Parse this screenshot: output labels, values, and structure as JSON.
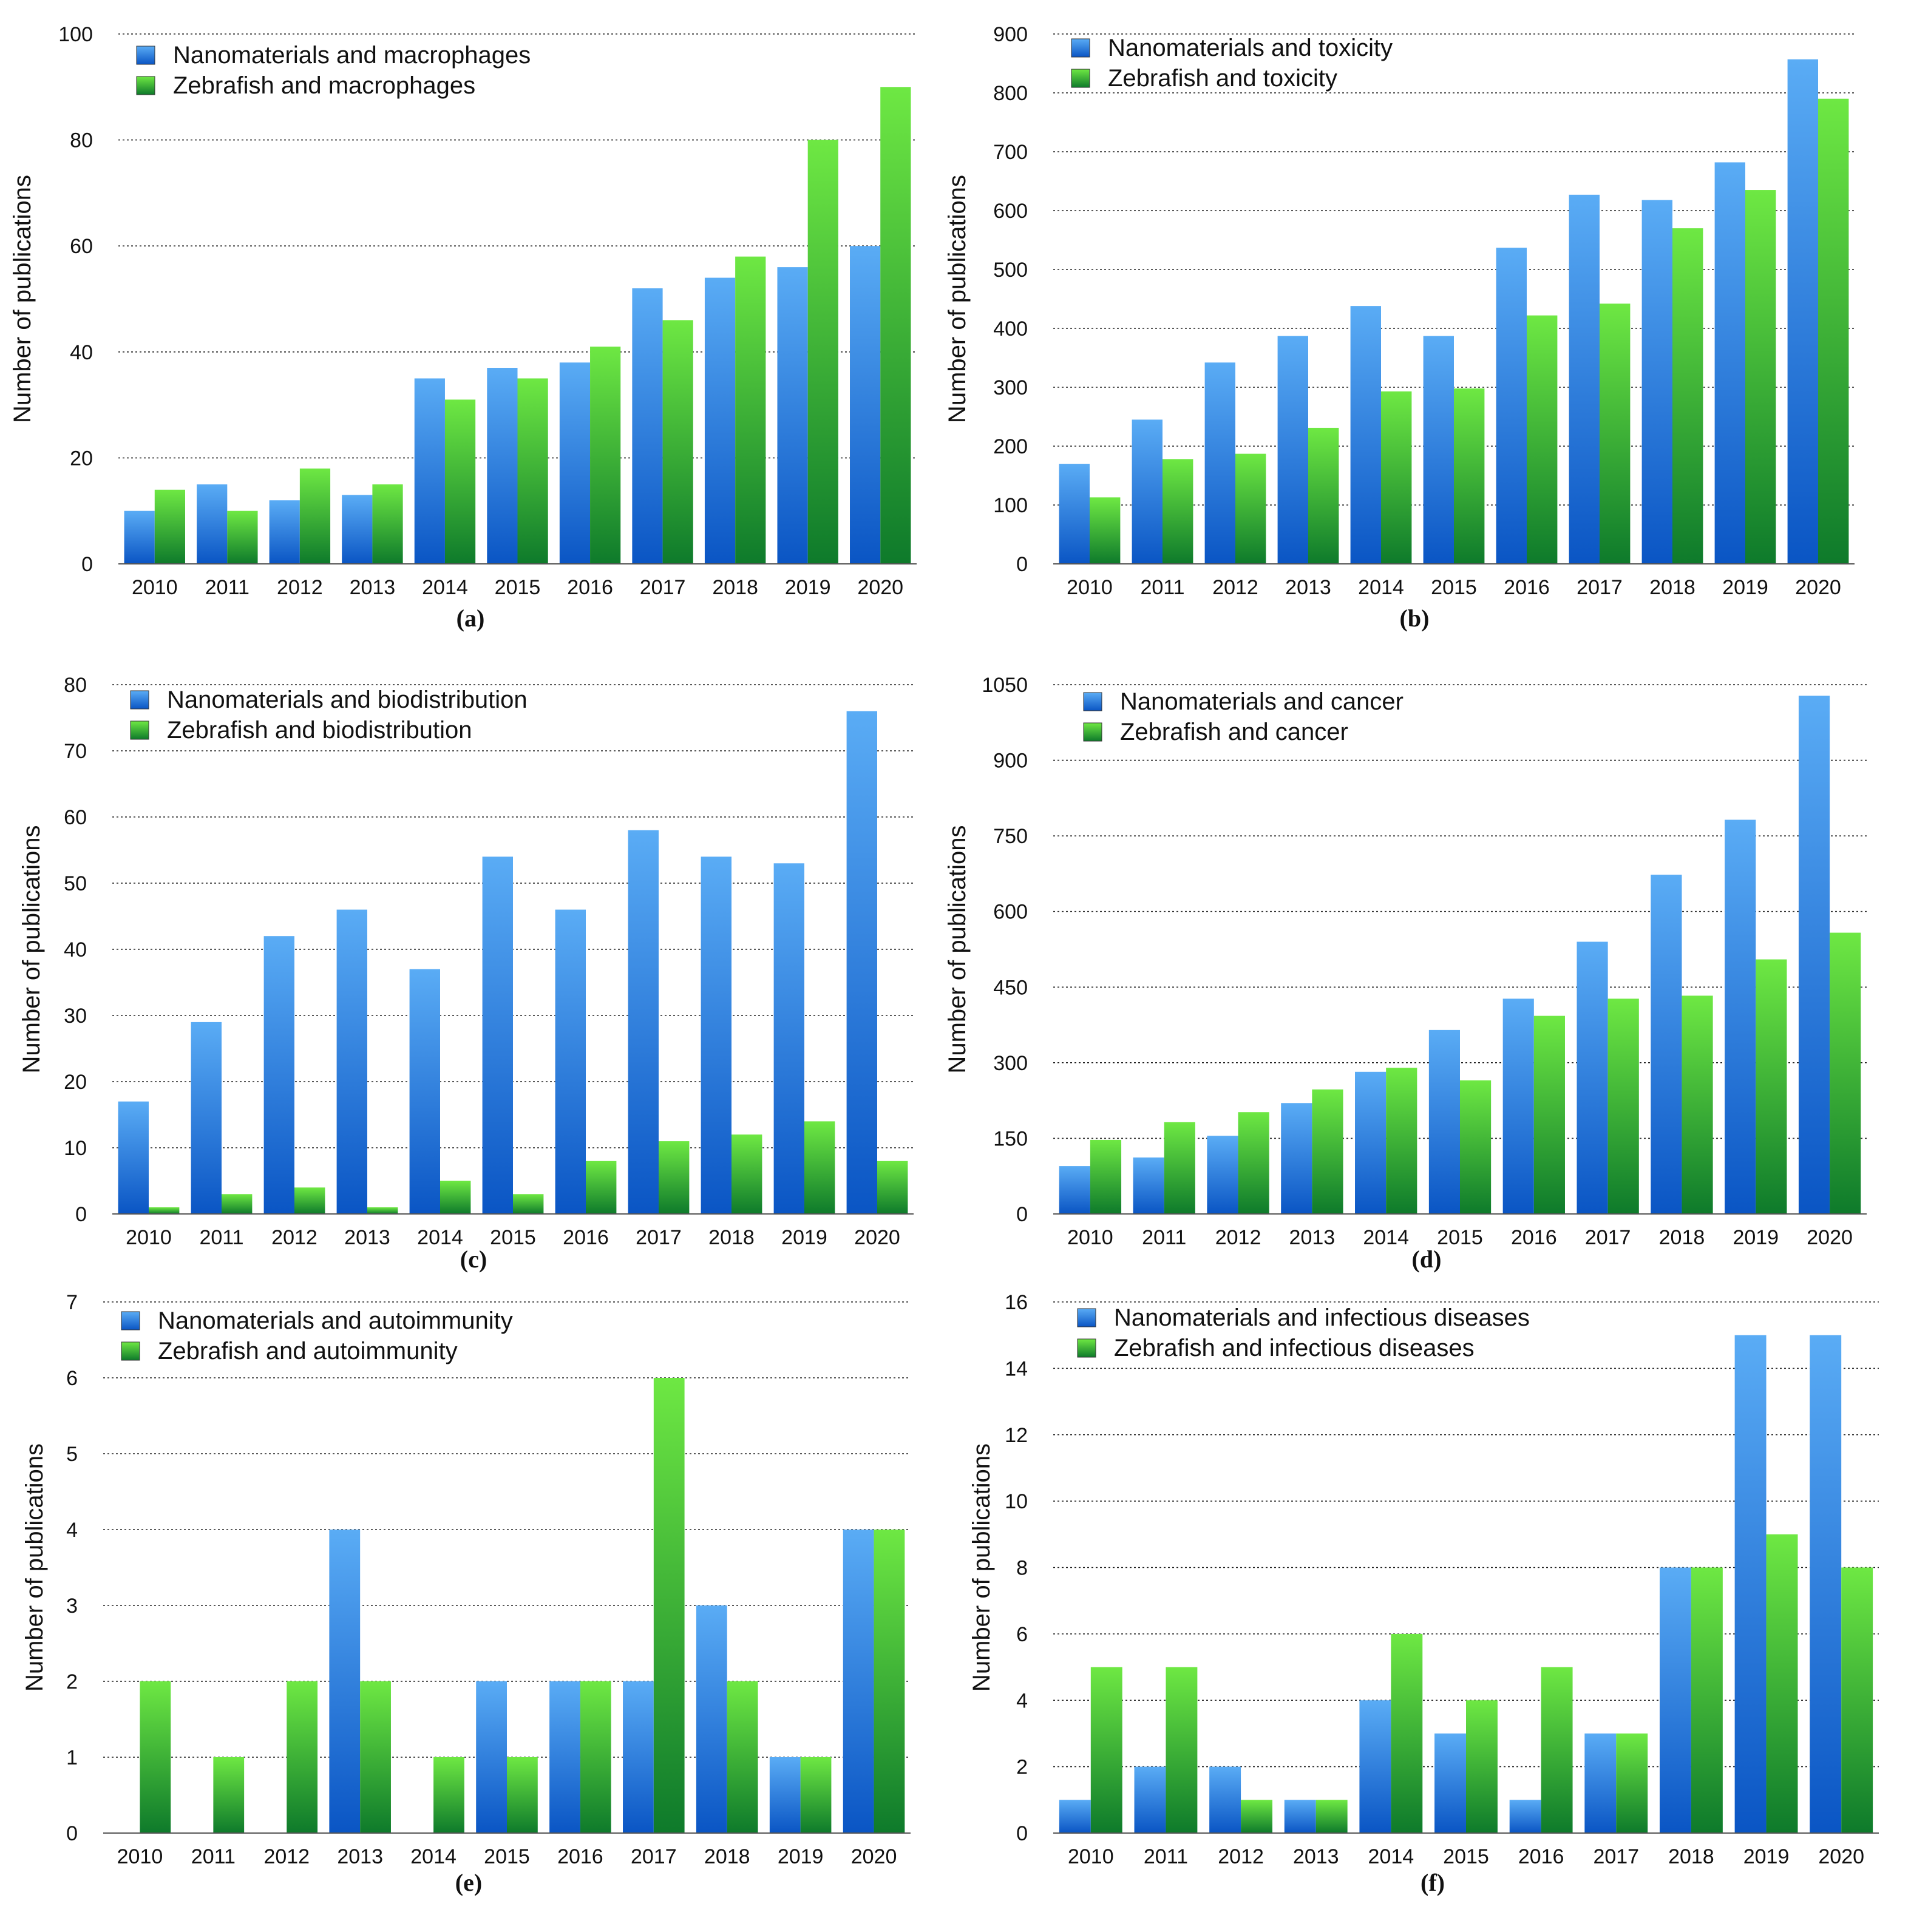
{
  "figure": {
    "colors": {
      "blue_top": "#5aacf5",
      "blue_bottom": "#0a55c4",
      "green_top": "#6ee843",
      "green_bottom": "#0e7a2b"
    }
  },
  "chart_data": [
    {
      "id": "a",
      "type": "bar",
      "caption": "(a)",
      "ylabel": "Number of publications",
      "categories": [
        "2010",
        "2011",
        "2012",
        "2013",
        "2014",
        "2015",
        "2016",
        "2017",
        "2018",
        "2019",
        "2020"
      ],
      "ylim": [
        0,
        100
      ],
      "yticks": [
        "0",
        "20",
        "40",
        "60",
        "80",
        "100"
      ],
      "ytick_values": [
        0,
        20,
        40,
        60,
        80,
        100
      ],
      "series": [
        {
          "name": "Nanomaterials and macrophages",
          "color": "blue",
          "values": [
            10,
            15,
            12,
            13,
            35,
            37,
            38,
            52,
            54,
            56,
            60
          ]
        },
        {
          "name": "Zebrafish and macrophages",
          "color": "green",
          "values": [
            14,
            10,
            18,
            15,
            31,
            35,
            41,
            46,
            58,
            80,
            90
          ]
        }
      ]
    },
    {
      "id": "b",
      "type": "bar",
      "caption": "(b)",
      "ylabel": "Number of publications",
      "categories": [
        "2010",
        "2011",
        "2012",
        "2013",
        "2014",
        "2015",
        "2016",
        "2017",
        "2018",
        "2019",
        "2020"
      ],
      "ylim": [
        0,
        900
      ],
      "yticks": [
        "0",
        "100",
        "200",
        "300",
        "400",
        "500",
        "600",
        "700",
        "800",
        "900"
      ],
      "ytick_values": [
        0,
        100,
        200,
        300,
        400,
        500,
        600,
        700,
        800,
        900
      ],
      "series": [
        {
          "name": "Nanomaterials and toxicity",
          "color": "blue",
          "values": [
            170,
            245,
            342,
            387,
            438,
            387,
            537,
            627,
            618,
            682,
            857
          ]
        },
        {
          "name": "Zebrafish and toxicity",
          "color": "green",
          "values": [
            113,
            178,
            187,
            231,
            293,
            298,
            422,
            442,
            570,
            635,
            790
          ]
        }
      ]
    },
    {
      "id": "c",
      "type": "bar",
      "caption": "(c)",
      "ylabel": "Number of publications",
      "categories": [
        "2010",
        "2011",
        "2012",
        "2013",
        "2014",
        "2015",
        "2016",
        "2017",
        "2018",
        "2019",
        "2020"
      ],
      "ylim": [
        0,
        80
      ],
      "yticks": [
        "0",
        "10",
        "20",
        "30",
        "40",
        "50",
        "60",
        "70",
        "80"
      ],
      "ytick_values": [
        0,
        10,
        20,
        30,
        40,
        50,
        60,
        70,
        80
      ],
      "series": [
        {
          "name": "Nanomaterials and biodistribution",
          "color": "blue",
          "values": [
            17,
            29,
            42,
            46,
            37,
            54,
            46,
            58,
            54,
            53,
            76
          ]
        },
        {
          "name": "Zebrafish and biodistribution",
          "color": "green",
          "values": [
            1,
            3,
            4,
            1,
            5,
            3,
            8,
            11,
            12,
            14,
            8
          ]
        }
      ]
    },
    {
      "id": "d",
      "type": "bar",
      "caption": "(d)",
      "ylabel": "Number of publications",
      "categories": [
        "2010",
        "2011",
        "2012",
        "2013",
        "2014",
        "2015",
        "2016",
        "2017",
        "2018",
        "2019",
        "2020"
      ],
      "ylim": [
        0,
        1050
      ],
      "yticks": [
        "0",
        "150",
        "300",
        "450",
        "600",
        "750",
        "900",
        "1050"
      ],
      "ytick_values": [
        0,
        150,
        300,
        450,
        600,
        750,
        900,
        1050
      ],
      "series": [
        {
          "name": "Nanomaterials and cancer",
          "color": "blue",
          "values": [
            95,
            112,
            155,
            220,
            282,
            365,
            427,
            540,
            673,
            782,
            1028
          ]
        },
        {
          "name": "Zebrafish and cancer",
          "color": "green",
          "values": [
            147,
            182,
            202,
            247,
            290,
            265,
            393,
            427,
            433,
            505,
            558
          ]
        }
      ]
    },
    {
      "id": "e",
      "type": "bar",
      "caption": "(e)",
      "ylabel": "Number of publications",
      "categories": [
        "2010",
        "2011",
        "2012",
        "2013",
        "2014",
        "2015",
        "2016",
        "2017",
        "2018",
        "2019",
        "2020"
      ],
      "ylim": [
        0,
        7
      ],
      "yticks": [
        "0",
        "1",
        "2",
        "3",
        "4",
        "5",
        "6",
        "7"
      ],
      "ytick_values": [
        0,
        1,
        2,
        3,
        4,
        5,
        6,
        7
      ],
      "series": [
        {
          "name": "Nanomaterials and autoimmunity",
          "color": "blue",
          "values": [
            0,
            0,
            0,
            4,
            0,
            2,
            2,
            2,
            3,
            1,
            4
          ]
        },
        {
          "name": "Zebrafish and autoimmunity",
          "color": "green",
          "values": [
            2,
            1,
            2,
            2,
            1,
            1,
            2,
            6,
            2,
            1,
            4
          ]
        }
      ]
    },
    {
      "id": "f",
      "type": "bar",
      "caption": "(f)",
      "ylabel": "Number of publications",
      "categories": [
        "2010",
        "2011",
        "2012",
        "2013",
        "2014",
        "2015",
        "2016",
        "2017",
        "2018",
        "2019",
        "2020"
      ],
      "ylim": [
        0,
        16
      ],
      "yticks": [
        "0",
        "2",
        "4",
        "6",
        "8",
        "10",
        "12",
        "14",
        "16"
      ],
      "ytick_values": [
        0,
        2,
        4,
        6,
        8,
        10,
        12,
        14,
        16
      ],
      "series": [
        {
          "name": "Nanomaterials and infectious diseases",
          "color": "blue",
          "values": [
            1,
            2,
            2,
            1,
            4,
            3,
            1,
            3,
            8,
            15,
            15
          ]
        },
        {
          "name": "Zebrafish and infectious diseases",
          "color": "green",
          "values": [
            5,
            5,
            1,
            1,
            6,
            4,
            5,
            3,
            8,
            9,
            8
          ]
        }
      ]
    }
  ]
}
